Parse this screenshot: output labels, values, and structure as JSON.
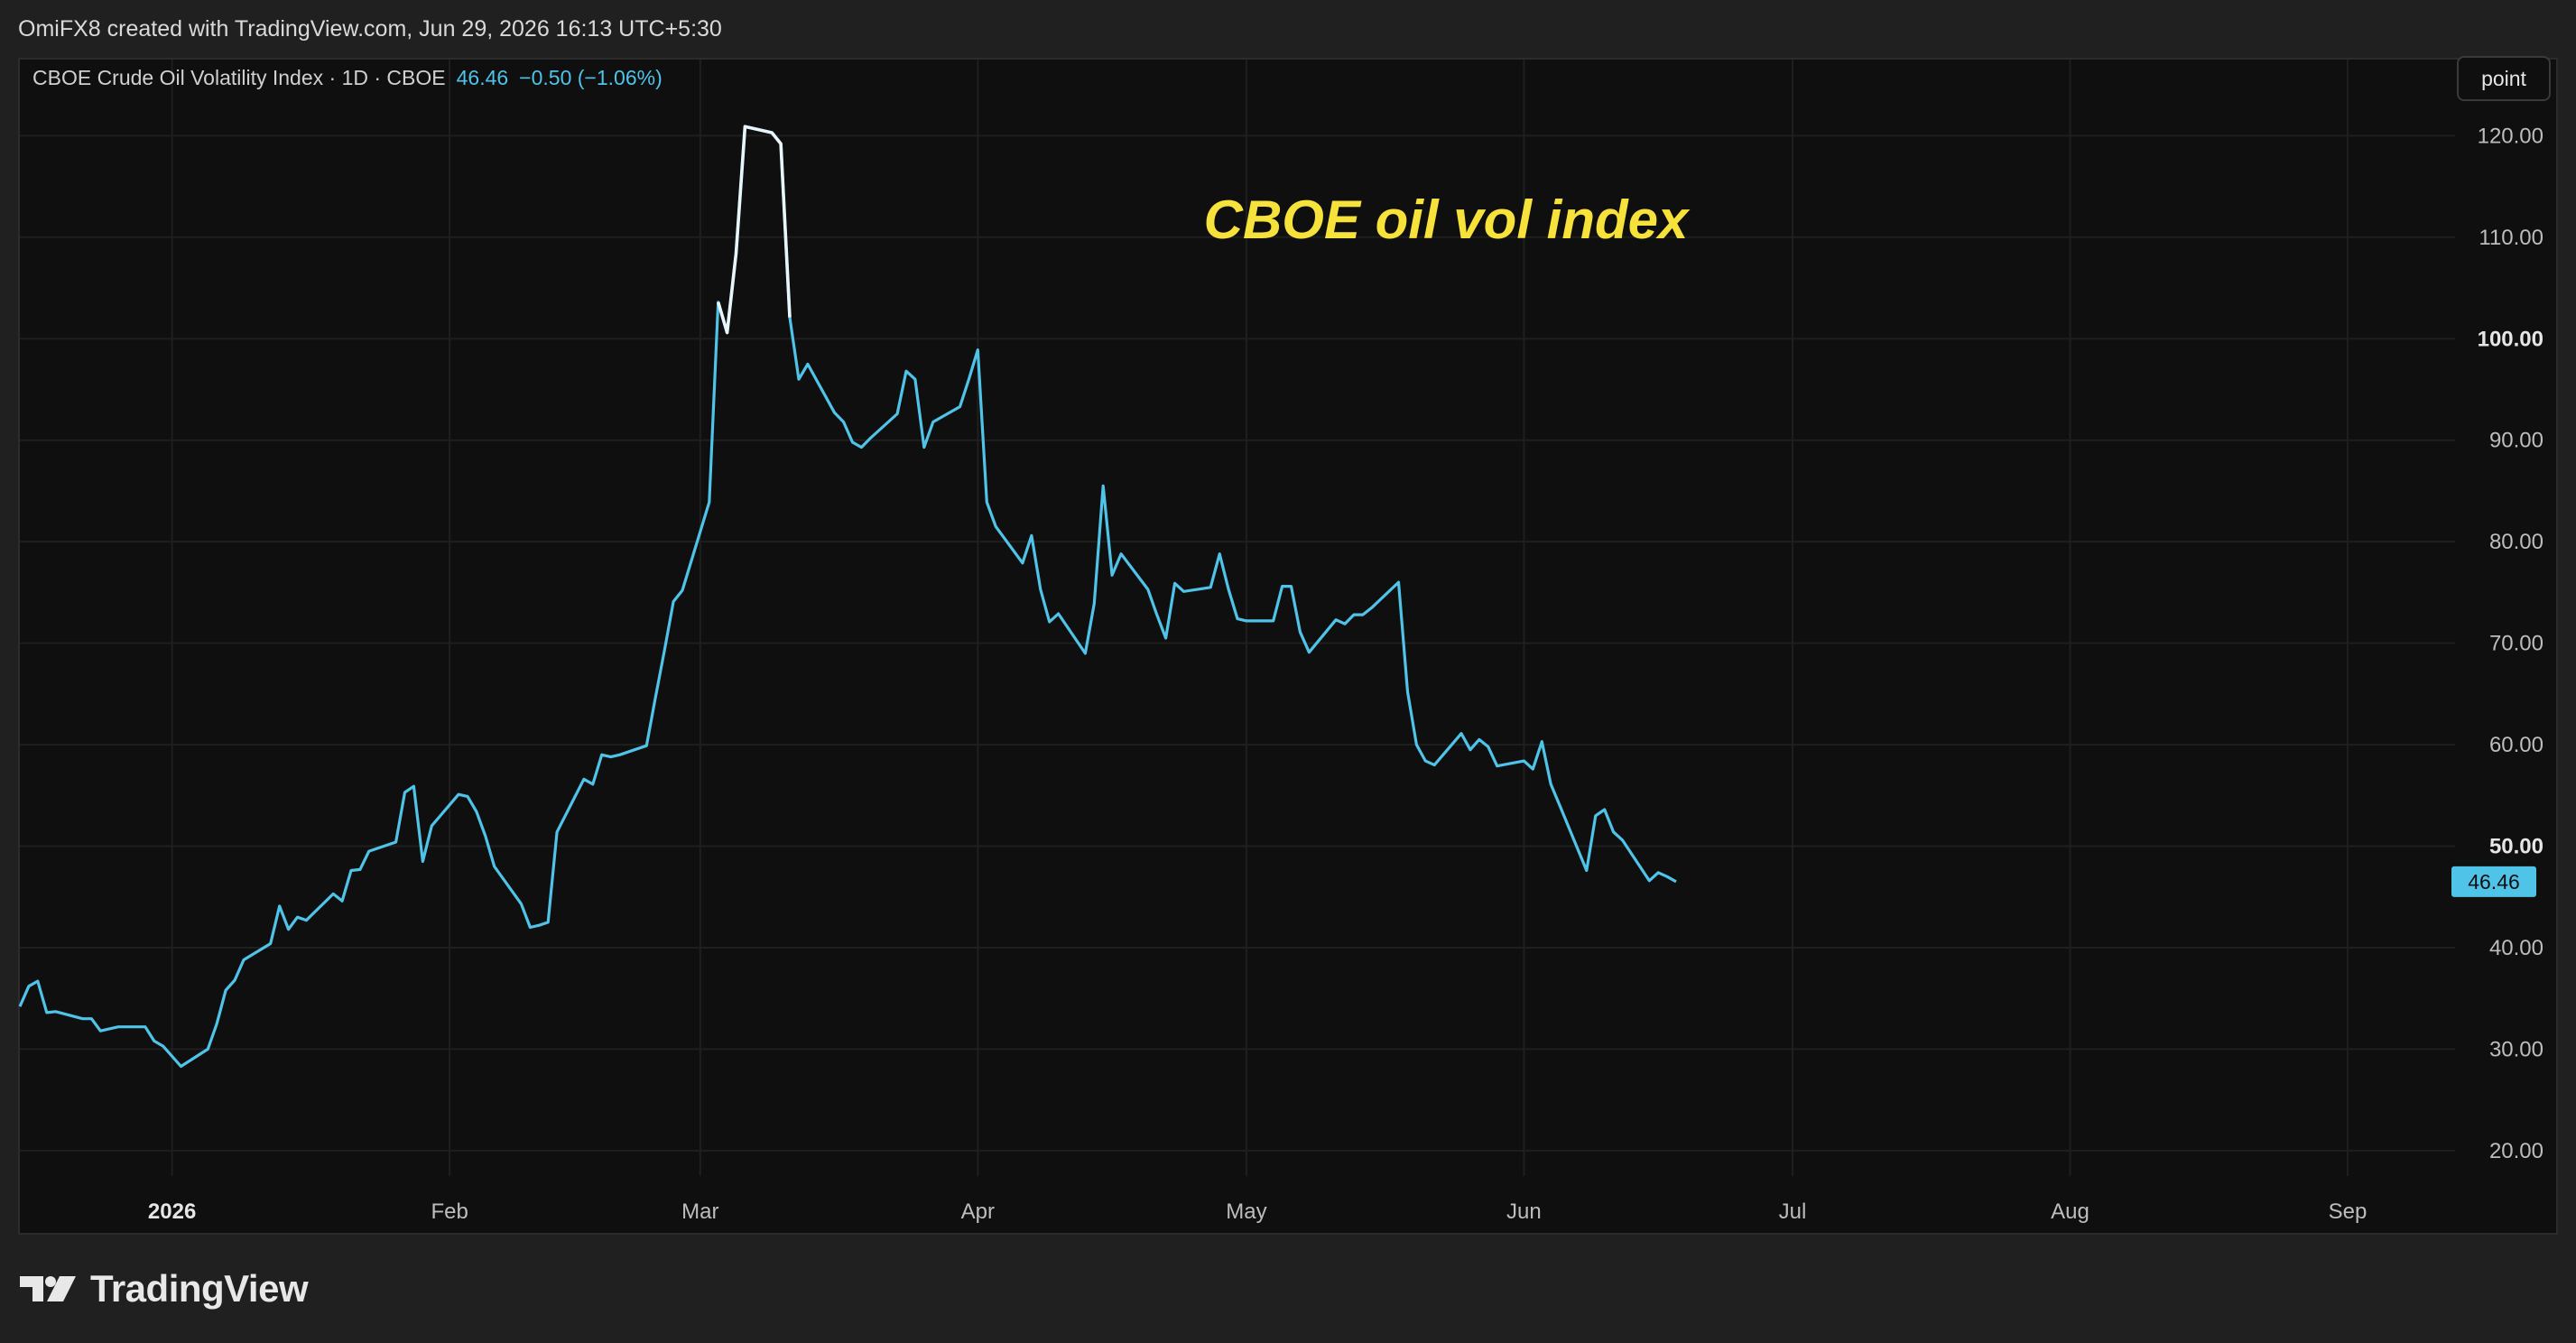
{
  "header": {
    "attribution": "OmiFX8 created with TradingView.com, Jun 29, 2026 16:13 UTC+5:30"
  },
  "legend": {
    "symbol": "CBOE Crude Oil Volatility Index · 1D · CBOE",
    "last_value": "46.46",
    "change": "−0.50 (−1.06%)"
  },
  "toolbar": {
    "point_label": "point"
  },
  "annotation": {
    "text": "CBOE oil vol index",
    "color": "#f7e23b"
  },
  "price_tag": {
    "label": "46.46",
    "color": "#4fc3e8"
  },
  "footer": {
    "logo_text": "TradingView",
    "logo_icon": "tradingview-logo-icon"
  },
  "colors": {
    "line": "#4fc3e8",
    "highlight": "#e8f6fb",
    "background": "#0f0f0f"
  },
  "chart_data": {
    "type": "line",
    "title": "",
    "xlabel": "",
    "ylabel": "",
    "ylim": [
      17.5,
      127.5
    ],
    "grid": true,
    "y_ticks": [
      {
        "value": 20,
        "label": "20.00",
        "bold": false
      },
      {
        "value": 30,
        "label": "30.00",
        "bold": false
      },
      {
        "value": 40,
        "label": "40.00",
        "bold": false
      },
      {
        "value": 50,
        "label": "50.00",
        "bold": true
      },
      {
        "value": 60,
        "label": "60.00",
        "bold": false
      },
      {
        "value": 70,
        "label": "70.00",
        "bold": false
      },
      {
        "value": 80,
        "label": "80.00",
        "bold": false
      },
      {
        "value": 90,
        "label": "90.00",
        "bold": false
      },
      {
        "value": 100,
        "label": "100.00",
        "bold": true
      },
      {
        "value": 110,
        "label": "110.00",
        "bold": false
      },
      {
        "value": 120,
        "label": "120.00",
        "bold": false
      }
    ],
    "x_ticks": [
      {
        "date": "2026-01-01",
        "label": "2026",
        "bold": true
      },
      {
        "date": "2026-02-01",
        "label": "Feb",
        "bold": false
      },
      {
        "date": "2026-03-01",
        "label": "Mar",
        "bold": false
      },
      {
        "date": "2026-04-01",
        "label": "Apr",
        "bold": false
      },
      {
        "date": "2026-05-01",
        "label": "May",
        "bold": false
      },
      {
        "date": "2026-06-01",
        "label": "Jun",
        "bold": false
      },
      {
        "date": "2026-07-01",
        "label": "Jul",
        "bold": false
      },
      {
        "date": "2026-08-01",
        "label": "Aug",
        "bold": false
      },
      {
        "date": "2026-09-01",
        "label": "Sep",
        "bold": false
      }
    ],
    "x_range": [
      "2025-12-15",
      "2026-09-13"
    ],
    "series": [
      {
        "highlight_range": [
          "2026-03-03",
          "2026-03-11"
        ],
        "points": [
          [
            "2025-12-15",
            34.2
          ],
          [
            "2025-12-16",
            36.2
          ],
          [
            "2025-12-17",
            36.7
          ],
          [
            "2025-12-18",
            33.6
          ],
          [
            "2025-12-19",
            33.7
          ],
          [
            "2025-12-22",
            33.0
          ],
          [
            "2025-12-23",
            33.0
          ],
          [
            "2025-12-24",
            31.8
          ],
          [
            "2025-12-26",
            32.2
          ],
          [
            "2025-12-29",
            32.2
          ],
          [
            "2025-12-30",
            30.8
          ],
          [
            "2025-12-31",
            30.3
          ],
          [
            "2026-01-02",
            28.3
          ],
          [
            "2026-01-05",
            30.0
          ],
          [
            "2026-01-06",
            32.5
          ],
          [
            "2026-01-07",
            35.8
          ],
          [
            "2026-01-08",
            36.8
          ],
          [
            "2026-01-09",
            38.8
          ],
          [
            "2026-01-12",
            40.4
          ],
          [
            "2026-01-13",
            44.1
          ],
          [
            "2026-01-14",
            41.8
          ],
          [
            "2026-01-15",
            43.0
          ],
          [
            "2026-01-16",
            42.7
          ],
          [
            "2026-01-19",
            45.3
          ],
          [
            "2026-01-20",
            44.6
          ],
          [
            "2026-01-21",
            47.6
          ],
          [
            "2026-01-22",
            47.7
          ],
          [
            "2026-01-23",
            49.5
          ],
          [
            "2026-01-26",
            50.4
          ],
          [
            "2026-01-27",
            55.3
          ],
          [
            "2026-01-28",
            55.9
          ],
          [
            "2026-01-29",
            48.5
          ],
          [
            "2026-01-30",
            52.0
          ],
          [
            "2026-02-02",
            55.1
          ],
          [
            "2026-02-03",
            54.9
          ],
          [
            "2026-02-04",
            53.4
          ],
          [
            "2026-02-05",
            51.0
          ],
          [
            "2026-02-06",
            48.0
          ],
          [
            "2026-02-09",
            44.3
          ],
          [
            "2026-02-10",
            42.0
          ],
          [
            "2026-02-11",
            42.2
          ],
          [
            "2026-02-12",
            42.5
          ],
          [
            "2026-02-13",
            51.4
          ],
          [
            "2026-02-16",
            56.6
          ],
          [
            "2026-02-17",
            56.1
          ],
          [
            "2026-02-18",
            59.0
          ],
          [
            "2026-02-19",
            58.8
          ],
          [
            "2026-02-20",
            59.0
          ],
          [
            "2026-02-23",
            59.9
          ],
          [
            "2026-02-24",
            64.7
          ],
          [
            "2026-02-25",
            69.3
          ],
          [
            "2026-02-26",
            74.1
          ],
          [
            "2026-02-27",
            75.2
          ],
          [
            "2026-03-02",
            83.9
          ],
          [
            "2026-03-03",
            103.6
          ],
          [
            "2026-03-04",
            100.6
          ],
          [
            "2026-03-05",
            108.4
          ],
          [
            "2026-03-06",
            120.9
          ],
          [
            "2026-03-09",
            120.3
          ],
          [
            "2026-03-10",
            119.2
          ],
          [
            "2026-03-11",
            102.1
          ],
          [
            "2026-03-12",
            96.0
          ],
          [
            "2026-03-13",
            97.5
          ],
          [
            "2026-03-16",
            92.7
          ],
          [
            "2026-03-17",
            91.8
          ],
          [
            "2026-03-18",
            89.8
          ],
          [
            "2026-03-19",
            89.3
          ],
          [
            "2026-03-20",
            90.2
          ],
          [
            "2026-03-23",
            92.6
          ],
          [
            "2026-03-24",
            96.8
          ],
          [
            "2026-03-25",
            96.0
          ],
          [
            "2026-03-26",
            89.3
          ],
          [
            "2026-03-27",
            91.8
          ],
          [
            "2026-03-30",
            93.3
          ],
          [
            "2026-03-31",
            96.0
          ],
          [
            "2026-04-01",
            98.9
          ],
          [
            "2026-04-02",
            83.9
          ],
          [
            "2026-04-03",
            81.5
          ],
          [
            "2026-04-06",
            77.9
          ],
          [
            "2026-04-07",
            80.6
          ],
          [
            "2026-04-08",
            75.3
          ],
          [
            "2026-04-09",
            72.1
          ],
          [
            "2026-04-10",
            72.9
          ],
          [
            "2026-04-13",
            69.0
          ],
          [
            "2026-04-14",
            73.9
          ],
          [
            "2026-04-15",
            85.5
          ],
          [
            "2026-04-16",
            76.7
          ],
          [
            "2026-04-17",
            78.8
          ],
          [
            "2026-04-20",
            75.3
          ],
          [
            "2026-04-21",
            72.8
          ],
          [
            "2026-04-22",
            70.5
          ],
          [
            "2026-04-23",
            75.9
          ],
          [
            "2026-04-24",
            75.1
          ],
          [
            "2026-04-27",
            75.5
          ],
          [
            "2026-04-28",
            78.8
          ],
          [
            "2026-04-29",
            75.3
          ],
          [
            "2026-04-30",
            72.4
          ],
          [
            "2026-05-01",
            72.2
          ],
          [
            "2026-05-04",
            72.2
          ],
          [
            "2026-05-05",
            75.6
          ],
          [
            "2026-05-06",
            75.6
          ],
          [
            "2026-05-07",
            71.1
          ],
          [
            "2026-05-08",
            69.1
          ],
          [
            "2026-05-11",
            72.3
          ],
          [
            "2026-05-12",
            71.9
          ],
          [
            "2026-05-13",
            72.8
          ],
          [
            "2026-05-14",
            72.8
          ],
          [
            "2026-05-15",
            73.5
          ],
          [
            "2026-05-18",
            76.0
          ],
          [
            "2026-05-19",
            65.2
          ],
          [
            "2026-05-20",
            60.0
          ],
          [
            "2026-05-21",
            58.4
          ],
          [
            "2026-05-22",
            58.0
          ],
          [
            "2026-05-25",
            61.1
          ],
          [
            "2026-05-26",
            59.5
          ],
          [
            "2026-05-27",
            60.5
          ],
          [
            "2026-05-28",
            59.8
          ],
          [
            "2026-05-29",
            57.9
          ],
          [
            "2026-06-01",
            58.4
          ],
          [
            "2026-06-02",
            57.6
          ],
          [
            "2026-06-03",
            60.3
          ],
          [
            "2026-06-04",
            56.1
          ],
          [
            "2026-06-05",
            54.0
          ],
          [
            "2026-06-08",
            47.6
          ],
          [
            "2026-06-09",
            53.0
          ],
          [
            "2026-06-10",
            53.6
          ],
          [
            "2026-06-11",
            51.4
          ],
          [
            "2026-06-12",
            50.6
          ],
          [
            "2026-06-15",
            46.6
          ],
          [
            "2026-06-16",
            47.4
          ],
          [
            "2026-06-17",
            47.0
          ],
          [
            "2026-06-18",
            46.5
          ]
        ]
      }
    ]
  }
}
